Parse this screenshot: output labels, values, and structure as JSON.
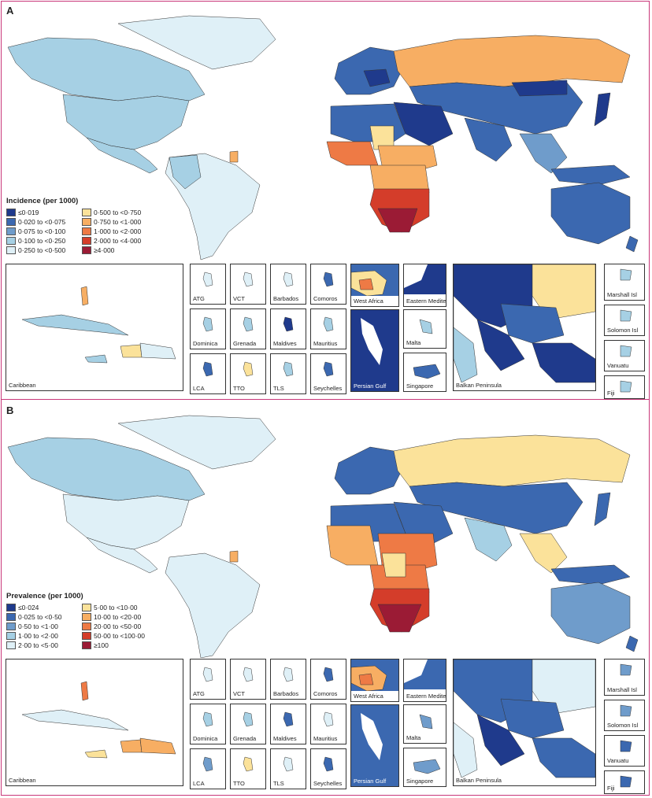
{
  "colors": {
    "ocean": "#ffffff",
    "border": "#333333",
    "accent": "#c9387a"
  },
  "panels": [
    {
      "letter": "A",
      "legend_title": "Incidence (per 1000)",
      "legend": [
        {
          "label": "≤0·019",
          "color": "#1f3a8c"
        },
        {
          "label": "0·500 to <0·750",
          "color": "#fbe29a"
        },
        {
          "label": "0·020 to <0·075",
          "color": "#3b68b0"
        },
        {
          "label": "0·750 to <1·000",
          "color": "#f7ae63"
        },
        {
          "label": "0·075 to <0·100",
          "color": "#6f9ccb"
        },
        {
          "label": "1·000 to <2·000",
          "color": "#ee7a45"
        },
        {
          "label": "0·100 to <0·250",
          "color": "#a6d0e4"
        },
        {
          "label": "2·000 to <4·000",
          "color": "#d43d2a"
        },
        {
          "label": "0·250 to <0·500",
          "color": "#dff0f7"
        },
        {
          "label": "≥4·000",
          "color": "#9b1b35"
        }
      ],
      "insets": {
        "caribbean": "Caribbean",
        "small": [
          "ATG",
          "VCT",
          "Barbados",
          "Comoros",
          "Dominica",
          "Grenada",
          "Maldives",
          "Mauritius",
          "LCA",
          "TTO",
          "TLS",
          "Seychelles"
        ],
        "west_africa": "West Africa",
        "eastern_med": "Eastern Mediterranean",
        "persian_gulf": "Persian Gulf",
        "malta": "Malta",
        "singapore": "Singapore",
        "balkan": "Balkan Peninsula",
        "pacific": [
          "Marshall Isl",
          "Solomon Isl",
          "Vanuatu",
          "Fiji"
        ]
      }
    },
    {
      "letter": "B",
      "legend_title": "Prevalence (per 1000)",
      "legend": [
        {
          "label": "≤0·024",
          "color": "#1f3a8c"
        },
        {
          "label": "5·00 to <10·00",
          "color": "#fbe29a"
        },
        {
          "label": "0·025 to <0·50",
          "color": "#3b68b0"
        },
        {
          "label": "10·00 to <20·00",
          "color": "#f7ae63"
        },
        {
          "label": "0·50 to <1·00",
          "color": "#6f9ccb"
        },
        {
          "label": "20·00 to <50·00",
          "color": "#ee7a45"
        },
        {
          "label": "1·00 to <2·00",
          "color": "#a6d0e4"
        },
        {
          "label": "50·00 to <100·00",
          "color": "#d43d2a"
        },
        {
          "label": "2·00 to <5·00",
          "color": "#dff0f7"
        },
        {
          "label": "≥100",
          "color": "#9b1b35"
        }
      ],
      "insets": {
        "caribbean": "Caribbean",
        "small": [
          "ATG",
          "VCT",
          "Barbados",
          "Comoros",
          "Dominica",
          "Grenada",
          "Maldives",
          "Mauritius",
          "LCA",
          "TTO",
          "TLS",
          "Seychelles"
        ],
        "west_africa": "West Africa",
        "eastern_med": "Eastern Mediterranean",
        "persian_gulf": "Persian Gulf",
        "malta": "Malta",
        "singapore": "Singapore",
        "balkan": "Balkan Peninsula",
        "pacific": [
          "Marshall Isl",
          "Solomon Isl",
          "Vanuatu",
          "Fiji"
        ]
      }
    }
  ]
}
